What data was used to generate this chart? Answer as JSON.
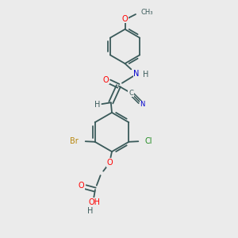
{
  "bg_color": "#ebebeb",
  "bond_color": "#3a5a5a",
  "atom_colors": {
    "O": "#ff0000",
    "N": "#0000cd",
    "Br": "#b8860b",
    "Cl": "#228b22",
    "C": "#3a5a5a",
    "H": "#3a5a5a"
  }
}
